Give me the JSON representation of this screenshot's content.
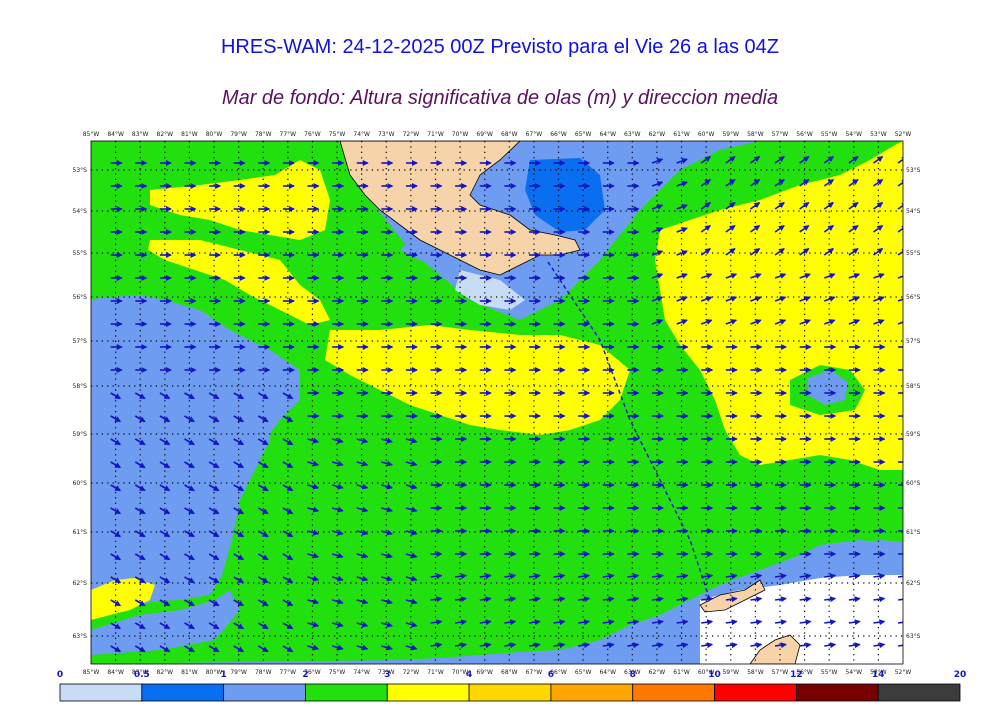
{
  "title_line1": "HRES-WAM: 24-12-2025 00Z Previsto para el Vie 26 a las 04Z",
  "title_line2": "Mar de fondo: Altura significativa de olas (m) y direccion media",
  "longitude_labels": [
    "85°W",
    "84°W",
    "83°W",
    "82°W",
    "81°W",
    "80°W",
    "79°W",
    "78°W",
    "77°W",
    "76°W",
    "75°W",
    "74°W",
    "73°W",
    "72°W",
    "71°W",
    "70°W",
    "69°W",
    "68°W",
    "67°W",
    "66°W",
    "65°W",
    "64°W",
    "63°W",
    "62°W",
    "61°W",
    "60°W",
    "59°W",
    "58°W",
    "57°W",
    "56°W",
    "55°W",
    "54°W",
    "53°W",
    "52°W"
  ],
  "latitude_labels": [
    "53°S",
    "54°S",
    "55°S",
    "56°S",
    "57°S",
    "58°S",
    "59°S",
    "60°S",
    "61°S",
    "62°S",
    "63°S"
  ],
  "colorbar": {
    "ticks": [
      "0",
      "0.5",
      "1",
      "2",
      "3",
      "4",
      "6",
      "8",
      "10",
      "12",
      "14",
      "20"
    ],
    "colors": [
      "#c8ddf5",
      "#0a6ef0",
      "#6e9cf0",
      "#22e00e",
      "#ffff00",
      "#ffd700",
      "#ffa500",
      "#ff7800",
      "#ff0000",
      "#780000",
      "#3c3c3c"
    ]
  },
  "colors": {
    "land": "#f6d3a8",
    "coast": "#000000",
    "grid": "#000000",
    "arrow": "#1414c8",
    "boundary": "#1414c8",
    "ice": "#ffffff",
    "title1": "#1010e0",
    "title2": "#5a1060"
  }
}
